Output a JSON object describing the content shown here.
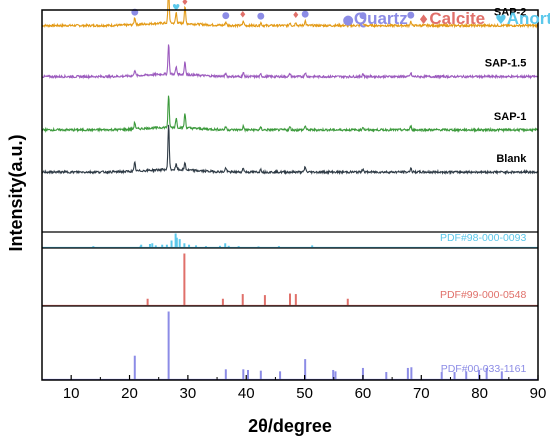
{
  "chart_data": {
    "type": "line",
    "title": "",
    "xlabel": "2θ/degree",
    "ylabel": "Intensity(a.u.)",
    "xlim": [
      5,
      90
    ],
    "x_ticks": [
      "10",
      "20",
      "30",
      "40",
      "50",
      "60",
      "70",
      "80",
      "90"
    ],
    "legend": {
      "placement": "top-right",
      "entries": [
        {
          "symbol": "●",
          "text": "Quartz",
          "color": "#8C8CE6"
        },
        {
          "symbol": "♦",
          "text": "Calcite",
          "color": "#E0706A"
        },
        {
          "symbol": "♥",
          "text": "Anorthite",
          "color": "#5BC8EB"
        }
      ]
    },
    "series": [
      {
        "name": "SAP-2",
        "color": "#E39A16",
        "baseline": 0.93,
        "peaks": [
          [
            20.9,
            0.12
          ],
          [
            26.7,
            0.55
          ],
          [
            28.0,
            0.18
          ],
          [
            29.5,
            0.28
          ],
          [
            36.5,
            0.06
          ],
          [
            39.5,
            0.07
          ],
          [
            42.5,
            0.05
          ],
          [
            47.5,
            0.05
          ],
          [
            48.5,
            0.06
          ],
          [
            50.1,
            0.08
          ],
          [
            60.0,
            0.06
          ],
          [
            68.2,
            0.07
          ]
        ]
      },
      {
        "name": "SAP-1.5",
        "color": "#9C5BBE",
        "baseline": 0.7,
        "peaks": [
          [
            20.9,
            0.1
          ],
          [
            26.7,
            0.5
          ],
          [
            28.0,
            0.12
          ],
          [
            29.5,
            0.22
          ],
          [
            36.5,
            0.05
          ],
          [
            39.5,
            0.06
          ],
          [
            42.5,
            0.04
          ],
          [
            47.5,
            0.05
          ],
          [
            50.1,
            0.07
          ],
          [
            60.0,
            0.05
          ],
          [
            68.2,
            0.06
          ]
        ]
      },
      {
        "name": "SAP-1",
        "color": "#3C9A3C",
        "baseline": 0.46,
        "peaks": [
          [
            20.9,
            0.11
          ],
          [
            26.7,
            0.52
          ],
          [
            28.0,
            0.16
          ],
          [
            29.5,
            0.24
          ],
          [
            36.5,
            0.05
          ],
          [
            39.5,
            0.06
          ],
          [
            42.5,
            0.04
          ],
          [
            47.5,
            0.05
          ],
          [
            50.1,
            0.07
          ],
          [
            60.0,
            0.05
          ],
          [
            68.2,
            0.06
          ]
        ]
      },
      {
        "name": "Blank",
        "color": "#2E3A45",
        "baseline": 0.27,
        "peaks": [
          [
            20.9,
            0.14
          ],
          [
            26.7,
            0.75
          ],
          [
            28.0,
            0.09
          ],
          [
            29.5,
            0.12
          ],
          [
            36.5,
            0.07
          ],
          [
            39.5,
            0.07
          ],
          [
            42.5,
            0.05
          ],
          [
            50.1,
            0.09
          ],
          [
            60.0,
            0.06
          ],
          [
            68.2,
            0.07
          ]
        ]
      }
    ],
    "references": [
      {
        "name": "PDF#98-000-0093",
        "color": "#5BC8EB",
        "peaks": [
          [
            13.8,
            0.1
          ],
          [
            21.9,
            0.12
          ],
          [
            22.0,
            0.2
          ],
          [
            23.5,
            0.25
          ],
          [
            23.9,
            0.3
          ],
          [
            24.5,
            0.15
          ],
          [
            25.6,
            0.2
          ],
          [
            26.4,
            0.2
          ],
          [
            27.2,
            0.5
          ],
          [
            27.9,
            1.0
          ],
          [
            28.1,
            0.7
          ],
          [
            28.6,
            0.6
          ],
          [
            29.4,
            0.3
          ],
          [
            30.2,
            0.2
          ],
          [
            31.4,
            0.15
          ],
          [
            33.1,
            0.1
          ],
          [
            35.5,
            0.12
          ],
          [
            36.4,
            0.3
          ],
          [
            37.0,
            0.12
          ],
          [
            38.7,
            0.1
          ],
          [
            42.1,
            0.08
          ],
          [
            45.6,
            0.1
          ],
          [
            51.3,
            0.15
          ]
        ]
      },
      {
        "name": "PDF#99-000-0548",
        "color": "#E0706A",
        "peaks": [
          [
            23.1,
            0.13
          ],
          [
            29.4,
            1.0
          ],
          [
            36.0,
            0.13
          ],
          [
            39.4,
            0.22
          ],
          [
            43.2,
            0.2
          ],
          [
            47.5,
            0.23
          ],
          [
            48.5,
            0.22
          ],
          [
            57.4,
            0.13
          ]
        ]
      },
      {
        "name": "PDF#00-033-1161",
        "color": "#8C8CE6",
        "peaks": [
          [
            20.9,
            0.35
          ],
          [
            26.7,
            1.0
          ],
          [
            36.5,
            0.15
          ],
          [
            39.5,
            0.15
          ],
          [
            40.3,
            0.14
          ],
          [
            42.5,
            0.13
          ],
          [
            45.8,
            0.12
          ],
          [
            50.1,
            0.3
          ],
          [
            54.9,
            0.14
          ],
          [
            55.3,
            0.12
          ],
          [
            60.0,
            0.17
          ],
          [
            64.0,
            0.11
          ],
          [
            67.7,
            0.17
          ],
          [
            68.3,
            0.18
          ],
          [
            73.5,
            0.11
          ],
          [
            75.7,
            0.11
          ],
          [
            77.7,
            0.12
          ],
          [
            79.9,
            0.14
          ],
          [
            81.2,
            0.17
          ],
          [
            83.8,
            0.12
          ]
        ]
      }
    ],
    "peak_markers": [
      {
        "symbol": "●",
        "type": "Quartz",
        "x": 20.9,
        "series": "SAP-2"
      },
      {
        "symbol": "●",
        "type": "Quartz",
        "x": 26.7,
        "series": "SAP-2"
      },
      {
        "symbol": "♥",
        "type": "Anorthite",
        "x": 28.0,
        "series": "SAP-2"
      },
      {
        "symbol": "♦",
        "type": "Calcite",
        "x": 29.5,
        "series": "SAP-2"
      },
      {
        "symbol": "●",
        "type": "Quartz",
        "x": 36.5,
        "series": "SAP-2"
      },
      {
        "symbol": "♦",
        "type": "Calcite",
        "x": 39.4,
        "series": "SAP-2"
      },
      {
        "symbol": "●",
        "type": "Quartz",
        "x": 42.5,
        "series": "SAP-2"
      },
      {
        "symbol": "♦",
        "type": "Calcite",
        "x": 48.5,
        "series": "SAP-2"
      },
      {
        "symbol": "●",
        "type": "Quartz",
        "x": 50.1,
        "series": "SAP-2"
      },
      {
        "symbol": "●",
        "type": "Quartz",
        "x": 60.0,
        "series": "SAP-2"
      },
      {
        "symbol": "●",
        "type": "Quartz",
        "x": 68.2,
        "series": "SAP-2"
      }
    ],
    "grid": false
  }
}
